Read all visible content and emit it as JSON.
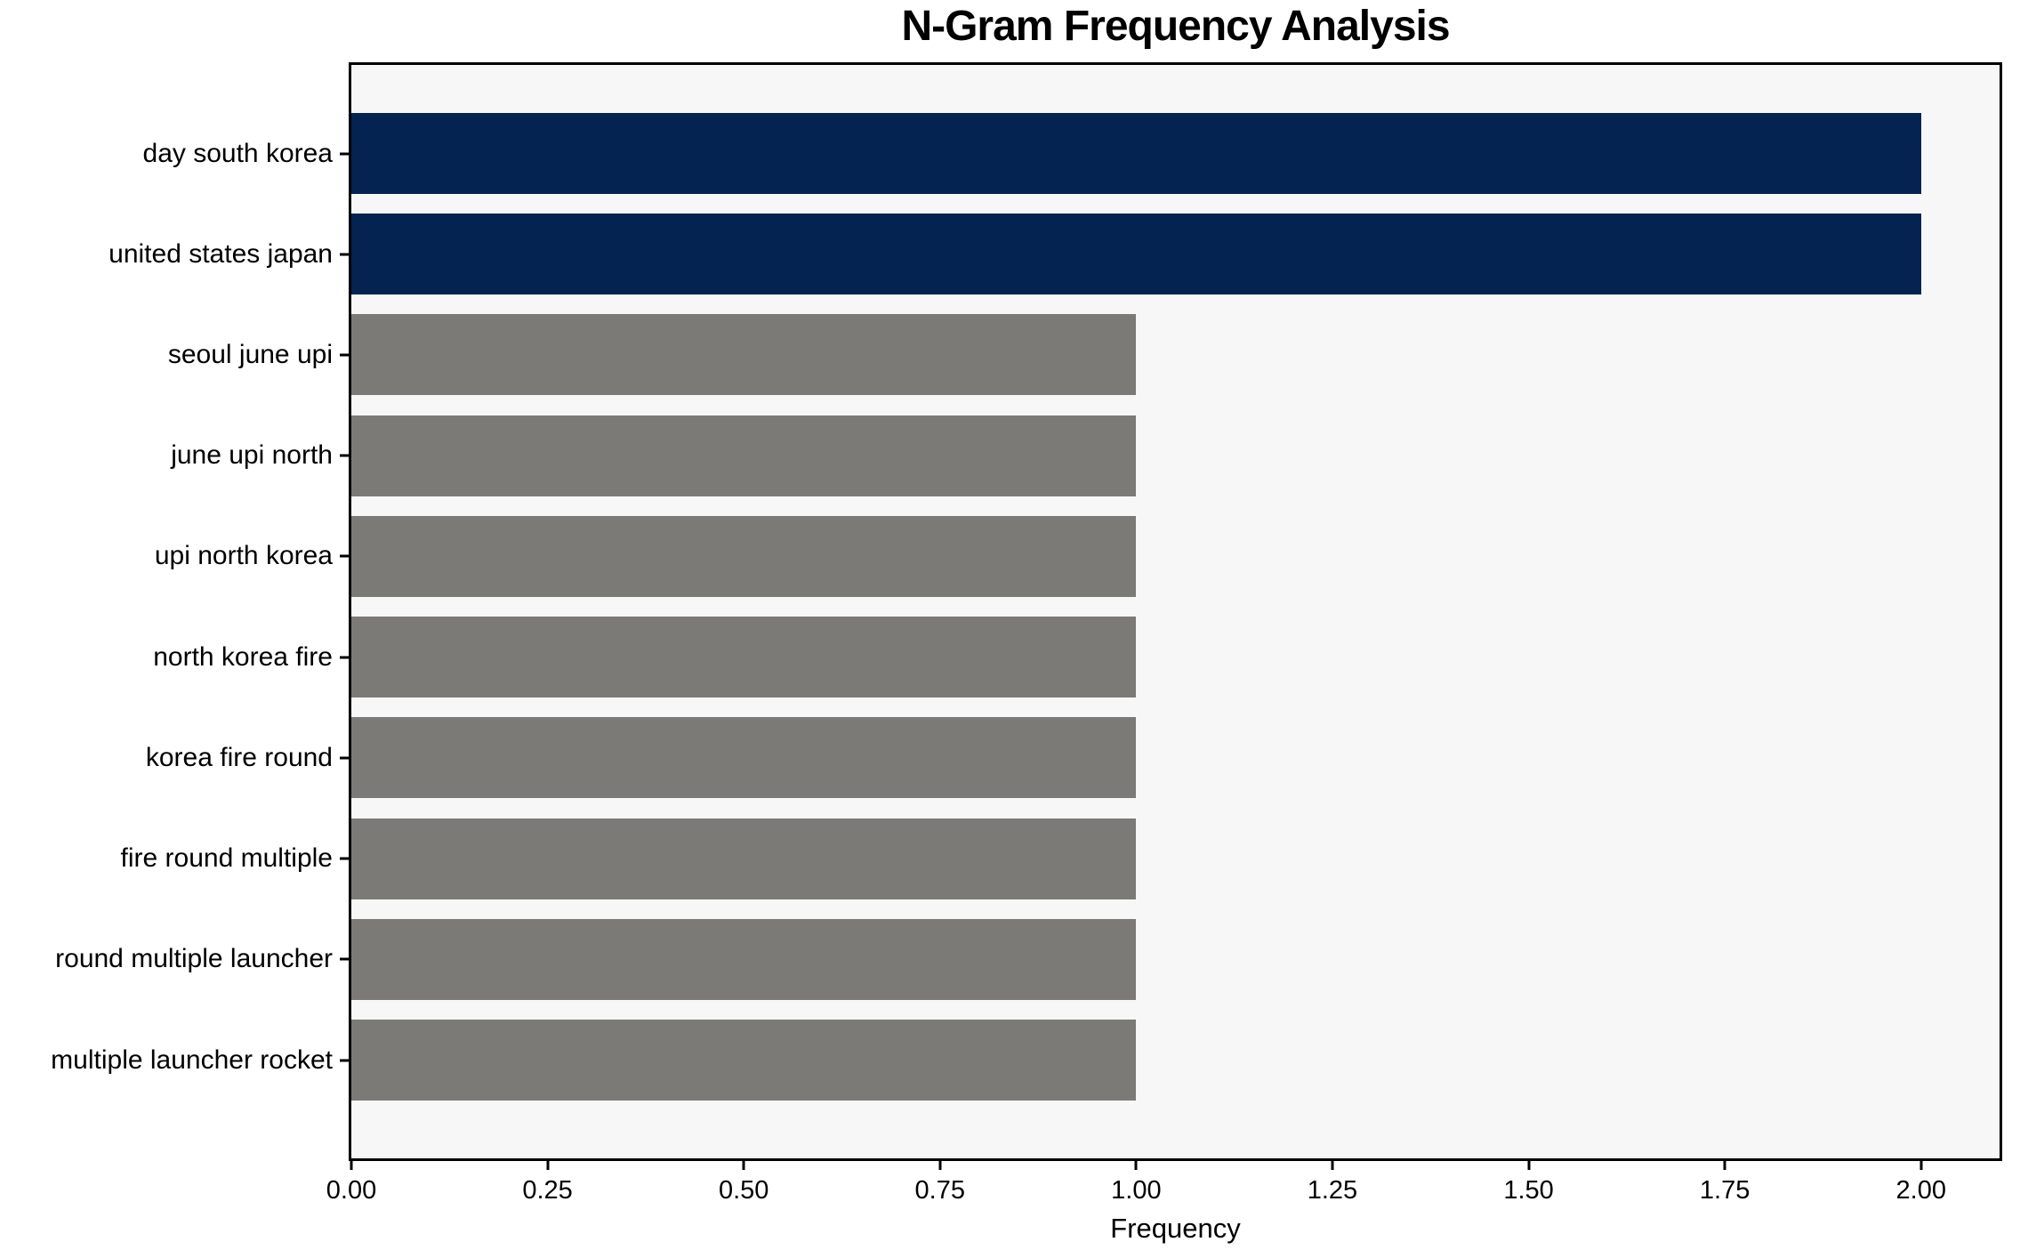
{
  "chart_data": {
    "type": "bar",
    "orientation": "horizontal",
    "title": "N-Gram Frequency Analysis",
    "xlabel": "Frequency",
    "ylabel": "",
    "categories": [
      "day south korea",
      "united states japan",
      "seoul june upi",
      "june upi north",
      "upi north korea",
      "north korea fire",
      "korea fire round",
      "fire round multiple",
      "round multiple launcher",
      "multiple launcher rocket"
    ],
    "values": [
      2,
      2,
      1,
      1,
      1,
      1,
      1,
      1,
      1,
      1
    ],
    "bar_colors": [
      "#042350",
      "#042350",
      "#7b7a77",
      "#7b7a77",
      "#7b7a77",
      "#7b7a77",
      "#7b7a77",
      "#7b7a77",
      "#7b7a77",
      "#7b7a77"
    ],
    "xlim": [
      0,
      2.1
    ],
    "xtick_values": [
      0,
      0.25,
      0.5,
      0.75,
      1.0,
      1.25,
      1.5,
      1.75,
      2.0
    ],
    "xtick_labels": [
      "0.00",
      "0.25",
      "0.50",
      "0.75",
      "1.00",
      "1.25",
      "1.50",
      "1.75",
      "2.00"
    ],
    "grid": false,
    "legend": null,
    "colors": {
      "bar_highlight": "#042350",
      "bar_default": "#7b7a77",
      "plot_background": "#f8f7f7",
      "figure_background": "#ffffff",
      "axis": "#000000",
      "text": "#000000"
    }
  }
}
